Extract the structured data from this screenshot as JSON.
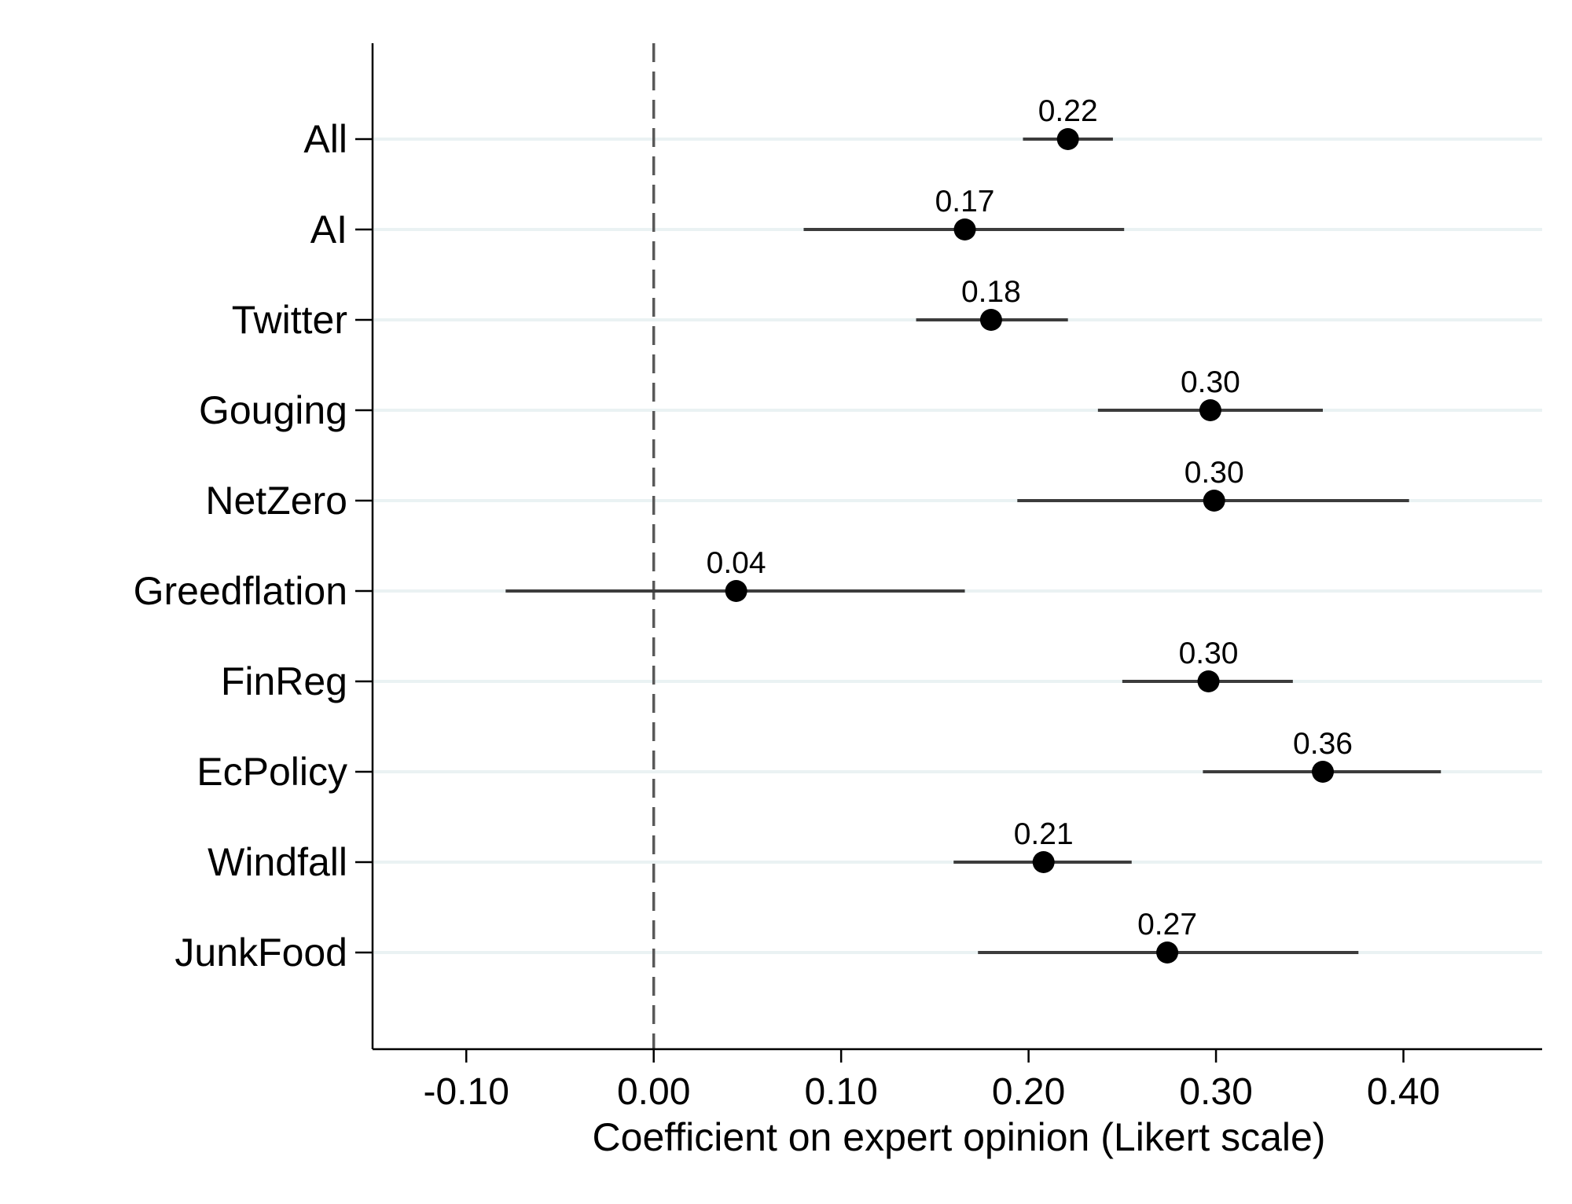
{
  "chart_data": {
    "type": "scatter",
    "subtype": "coefficient-plot-with-confidence-intervals",
    "title": "",
    "xlabel": "Coefficient on expert opinion (Likert scale)",
    "ylabel": "",
    "xlim": [
      -0.15,
      0.474
    ],
    "xticks": [
      -0.1,
      0.0,
      0.1,
      0.2,
      0.3,
      0.4
    ],
    "xtick_labels": [
      "-0.10",
      "0.00",
      "0.10",
      "0.20",
      "0.30",
      "0.40"
    ],
    "reference_line": {
      "x": 0.0,
      "style": "dashed",
      "color": "#595959"
    },
    "grid": {
      "horizontal": true,
      "vertical": false,
      "color": "#eaf2f3"
    },
    "legend": "none",
    "colors": {
      "marker": "#000000",
      "ci": "#3c3c3c",
      "axis": "#000000"
    },
    "categories": [
      "All",
      "AI",
      "Twitter",
      "Gouging",
      "NetZero",
      "Greedflation",
      "FinReg",
      "EcPolicy",
      "Windfall",
      "JunkFood"
    ],
    "estimates": [
      0.221,
      0.166,
      0.18,
      0.297,
      0.299,
      0.044,
      0.296,
      0.357,
      0.208,
      0.274
    ],
    "ci_low": [
      0.197,
      0.08,
      0.14,
      0.237,
      0.194,
      -0.079,
      0.25,
      0.293,
      0.16,
      0.173
    ],
    "ci_high": [
      0.245,
      0.251,
      0.221,
      0.357,
      0.403,
      0.166,
      0.341,
      0.42,
      0.255,
      0.376
    ],
    "value_labels": [
      "0.22",
      "0.17",
      "0.18",
      "0.30",
      "0.30",
      "0.04",
      "0.30",
      "0.36",
      "0.21",
      "0.27"
    ]
  }
}
